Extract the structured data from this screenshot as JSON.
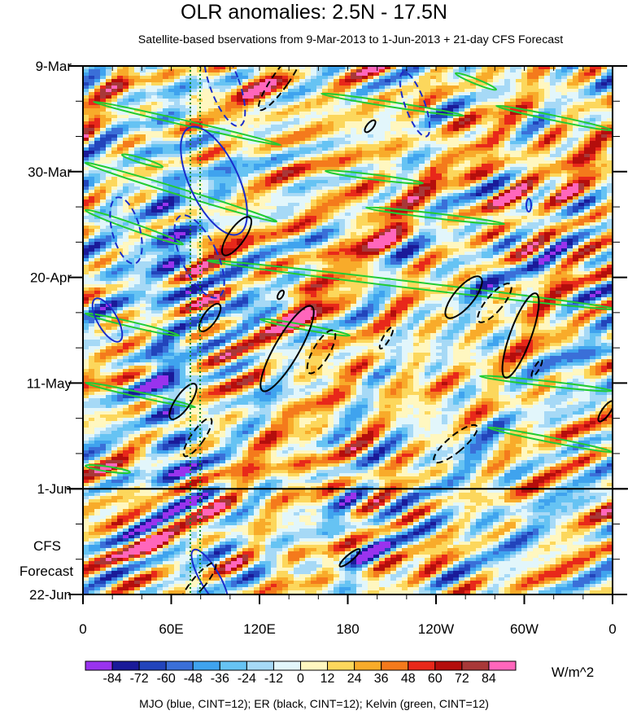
{
  "title": "OLR anomalies: 2.5N - 17.5N",
  "subtitle": "Satellite-based bservations from 9-Mar-2013 to 1-Jun-2013 + 21-day CFS Forecast",
  "footer": "MJO (blue, CINT=12); ER (black, CINT=12); Kelvin (green, CINT=12)",
  "forecast_label_line1": "CFS",
  "forecast_label_line2": "Forecast",
  "colorbar_units": "W/m^2",
  "chart_data": {
    "type": "heatmap",
    "x_ticks": [
      "0",
      "60E",
      "120E",
      "180",
      "120W",
      "60W",
      "0"
    ],
    "x_tick_degrees": [
      0,
      60,
      120,
      180,
      240,
      300,
      360
    ],
    "xlim": [
      0,
      360
    ],
    "y_ticks": [
      "9-Mar",
      "30-Mar",
      "20-Apr",
      "11-May",
      "1-Jun",
      "22-Jun"
    ],
    "y_tick_days": [
      0,
      21,
      42,
      63,
      84,
      105
    ],
    "ylim_days": [
      0,
      105
    ],
    "observation_end": "1-Jun",
    "colorbar_levels": [
      -84,
      -72,
      -60,
      -48,
      -36,
      -24,
      -12,
      0,
      12,
      24,
      36,
      48,
      60,
      72,
      84
    ],
    "colorbar_labels": [
      "-84",
      "-72",
      "-60",
      "-48",
      "-36",
      "-24",
      "-12",
      "0",
      "12",
      "24",
      "36",
      "48",
      "60",
      "72",
      "84"
    ],
    "colorbar_colors": [
      "#9933ee",
      "#1a1a99",
      "#2244bb",
      "#3a6fd8",
      "#3fa3ee",
      "#66c3f3",
      "#a6d9f6",
      "#e2f6fb",
      "#fff7c0",
      "#fcd75c",
      "#f8ab2a",
      "#f47a1c",
      "#e8281a",
      "#b40e0c",
      "#a83838",
      "#ff66bb"
    ],
    "overlays": [
      {
        "name": "MJO",
        "color": "blue",
        "cint": 12
      },
      {
        "name": "ER",
        "color": "black",
        "cint": 12
      },
      {
        "name": "Kelvin",
        "color": "green",
        "cint": 12
      }
    ]
  }
}
